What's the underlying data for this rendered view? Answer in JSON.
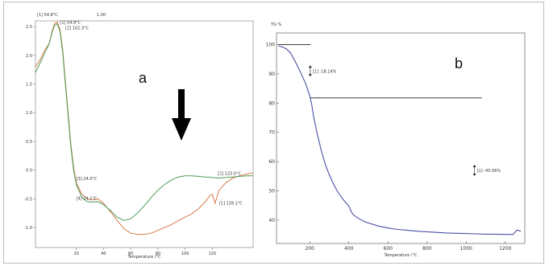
{
  "chart_data": [
    {
      "panel": "a",
      "type": "line",
      "panel_label": "a",
      "header": "[1] 54.8°C",
      "header_extra": "1.00",
      "xlabel": "Temperature /°C",
      "ylabel": "",
      "xlim": [
        -10,
        150
      ],
      "ylim": [
        -1.35,
        2.6
      ],
      "x_ticks": [
        "20",
        "40",
        "60",
        "80",
        "100",
        "120"
      ],
      "y_ticks": [
        "2.5",
        "2.0",
        "1.5",
        "1.0",
        "0.5",
        "0.0",
        "-0.5",
        "-1.0"
      ],
      "arrow": "down",
      "annotations": [
        {
          "text": "[1] 54.8°C",
          "x": 8,
          "y": 2.55
        },
        {
          "text": "[2] 102.3°C",
          "x": 12,
          "y": 2.45
        },
        {
          "text": "[3] 24.0°C",
          "x": 20,
          "y": -0.17
        },
        {
          "text": "[4] 24.1°C",
          "x": 20,
          "y": -0.52
        },
        {
          "text": "[2] 123.0°C",
          "x": 124,
          "y": -0.08
        },
        {
          "text": "[1] 128.1°C",
          "x": 125,
          "y": -0.6
        }
      ],
      "series": [
        {
          "color": "#d97a4a",
          "x": [
            -10,
            -6,
            -3,
            0,
            2,
            4,
            6,
            8,
            10,
            12,
            14,
            16,
            18,
            20,
            24,
            28,
            32,
            36,
            40,
            45,
            50,
            55,
            60,
            65,
            70,
            75,
            80,
            85,
            90,
            95,
            100,
            105,
            110,
            115,
            118,
            120,
            121,
            122,
            123,
            125,
            130,
            135,
            140,
            145,
            150
          ],
          "y": [
            1.8,
            1.95,
            2.1,
            2.2,
            2.4,
            2.55,
            2.58,
            2.45,
            2.1,
            1.55,
            1.0,
            0.45,
            0.05,
            -0.22,
            -0.42,
            -0.5,
            -0.52,
            -0.5,
            -0.58,
            -0.72,
            -0.88,
            -1.02,
            -1.1,
            -1.12,
            -1.12,
            -1.1,
            -1.05,
            -1.0,
            -0.95,
            -0.88,
            -0.82,
            -0.76,
            -0.67,
            -0.55,
            -0.45,
            -0.42,
            -0.5,
            -0.58,
            -0.5,
            -0.35,
            -0.22,
            -0.14,
            -0.1,
            -0.07,
            -0.05
          ]
        },
        {
          "color": "#4f9c57",
          "x": [
            -10,
            -6,
            -3,
            0,
            2,
            4,
            6,
            8,
            10,
            12,
            14,
            16,
            18,
            20,
            24,
            28,
            32,
            36,
            40,
            45,
            50,
            55,
            60,
            65,
            70,
            75,
            80,
            85,
            90,
            95,
            100,
            105,
            110,
            115,
            120,
            125,
            130,
            135,
            140,
            145,
            150
          ],
          "y": [
            1.7,
            1.9,
            2.05,
            2.2,
            2.38,
            2.52,
            2.55,
            2.42,
            2.05,
            1.5,
            0.95,
            0.4,
            0.0,
            -0.25,
            -0.47,
            -0.55,
            -0.56,
            -0.55,
            -0.6,
            -0.7,
            -0.82,
            -0.88,
            -0.85,
            -0.75,
            -0.62,
            -0.48,
            -0.35,
            -0.25,
            -0.17,
            -0.12,
            -0.1,
            -0.1,
            -0.11,
            -0.12,
            -0.13,
            -0.14,
            -0.13,
            -0.12,
            -0.11,
            -0.1,
            -0.1
          ]
        }
      ]
    },
    {
      "panel": "b",
      "type": "line",
      "panel_label": "b",
      "y_unit_label": "TG %",
      "xlabel": "Temperature /°C",
      "ylabel": "",
      "xlim": [
        30,
        1300
      ],
      "ylim": [
        32,
        104
      ],
      "x_ticks": [
        200,
        400,
        600,
        800,
        1000,
        1200
      ],
      "y_ticks": [
        40,
        50,
        60,
        70,
        80,
        90,
        100
      ],
      "annotations": [
        {
          "text": "[1] -18.14%",
          "x": 215,
          "y": 91
        },
        {
          "text": "[1] -45.06%",
          "x": 1055,
          "y": 57
        }
      ],
      "guide_lines": [
        {
          "x1": 40,
          "y1": 100,
          "x2": 205,
          "y2": 100
        },
        {
          "x1": 200,
          "y1": 81.8,
          "x2": 1080,
          "y2": 81.8
        }
      ],
      "series": [
        {
          "color": "#4a4fa3",
          "x": [
            40,
            60,
            80,
            100,
            120,
            140,
            160,
            180,
            200,
            210,
            220,
            240,
            260,
            280,
            300,
            320,
            340,
            360,
            380,
            400,
            410,
            420,
            440,
            460,
            480,
            500,
            550,
            600,
            650,
            700,
            750,
            800,
            850,
            900,
            950,
            1000,
            1050,
            1100,
            1150,
            1200,
            1240,
            1260,
            1280
          ],
          "y": [
            99.6,
            99.2,
            98.6,
            97.3,
            95.0,
            92.3,
            89.5,
            86.5,
            82.5,
            79.5,
            75.2,
            69.0,
            63.5,
            59.0,
            55.5,
            52.5,
            50.0,
            48.0,
            46.3,
            44.8,
            43.2,
            42.0,
            41.0,
            40.2,
            39.5,
            39.0,
            38.0,
            37.3,
            36.8,
            36.5,
            36.2,
            36.0,
            35.8,
            35.6,
            35.5,
            35.4,
            35.3,
            35.2,
            35.2,
            35.1,
            35.1,
            36.6,
            36.2
          ]
        }
      ]
    }
  ]
}
